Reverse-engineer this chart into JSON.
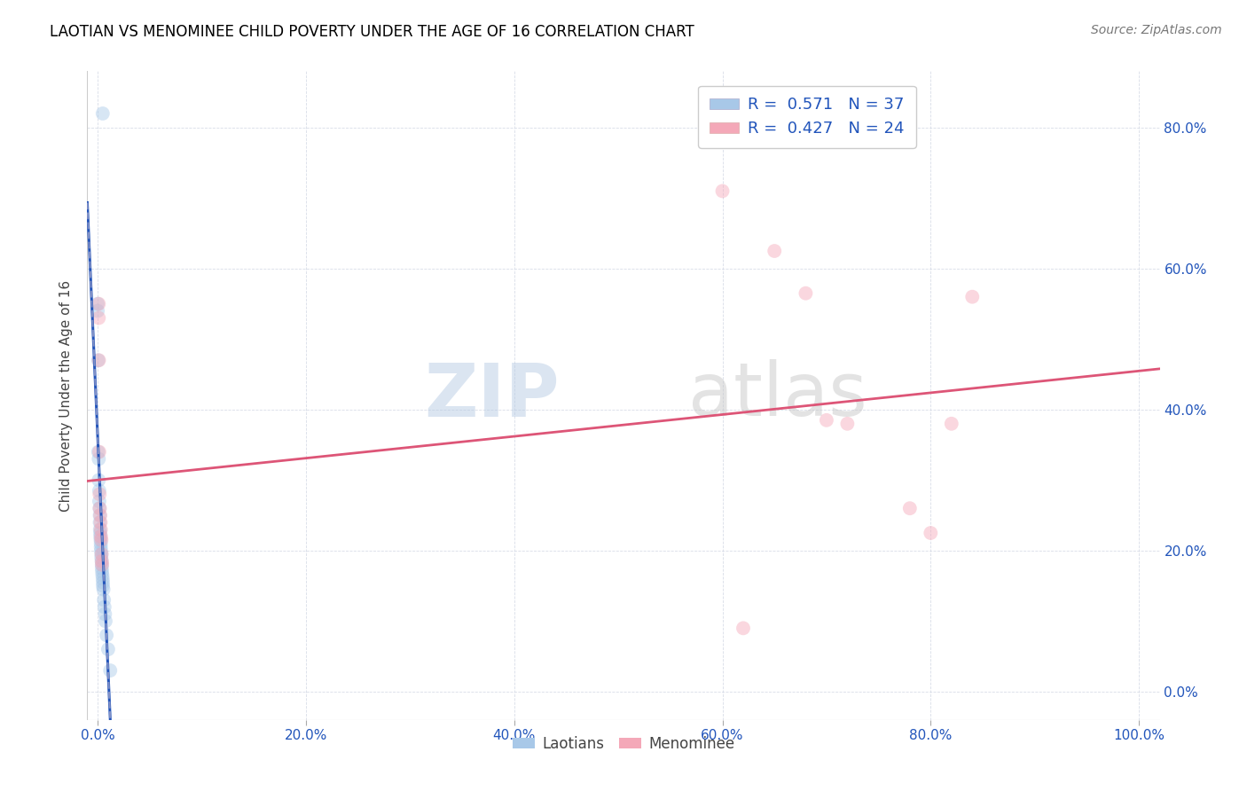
{
  "title": "LAOTIAN VS MENOMINEE CHILD POVERTY UNDER THE AGE OF 16 CORRELATION CHART",
  "source": "Source: ZipAtlas.com",
  "ylabel": "Child Poverty Under the Age of 16",
  "laotian_R": 0.571,
  "laotian_N": 37,
  "menominee_R": 0.427,
  "menominee_N": 24,
  "laotian_color": "#a8c8e8",
  "menominee_color": "#f4a8b8",
  "laotian_line_color": "#2255bb",
  "menominee_line_color": "#dd5577",
  "laotian_scatter": [
    [
      0.0,
      0.55
    ],
    [
      0.0,
      0.54
    ],
    [
      0.0005,
      0.47
    ],
    [
      0.0005,
      0.34
    ],
    [
      0.001,
      0.33
    ],
    [
      0.001,
      0.3
    ],
    [
      0.0015,
      0.285
    ],
    [
      0.0015,
      0.27
    ],
    [
      0.0018,
      0.26
    ],
    [
      0.002,
      0.25
    ],
    [
      0.002,
      0.24
    ],
    [
      0.0022,
      0.23
    ],
    [
      0.0025,
      0.225
    ],
    [
      0.0025,
      0.22
    ],
    [
      0.0028,
      0.215
    ],
    [
      0.003,
      0.21
    ],
    [
      0.003,
      0.205
    ],
    [
      0.0032,
      0.2
    ],
    [
      0.0035,
      0.195
    ],
    [
      0.0035,
      0.19
    ],
    [
      0.0038,
      0.185
    ],
    [
      0.004,
      0.18
    ],
    [
      0.004,
      0.175
    ],
    [
      0.0042,
      0.17
    ],
    [
      0.0045,
      0.165
    ],
    [
      0.0048,
      0.16
    ],
    [
      0.005,
      0.155
    ],
    [
      0.005,
      0.15
    ],
    [
      0.0055,
      0.145
    ],
    [
      0.006,
      0.13
    ],
    [
      0.0065,
      0.12
    ],
    [
      0.007,
      0.11
    ],
    [
      0.0075,
      0.1
    ],
    [
      0.0085,
      0.08
    ],
    [
      0.01,
      0.06
    ],
    [
      0.012,
      0.03
    ],
    [
      0.0048,
      0.82
    ]
  ],
  "menominee_scatter": [
    [
      0.001,
      0.55
    ],
    [
      0.001,
      0.53
    ],
    [
      0.0012,
      0.47
    ],
    [
      0.0015,
      0.34
    ],
    [
      0.0018,
      0.28
    ],
    [
      0.002,
      0.26
    ],
    [
      0.0025,
      0.25
    ],
    [
      0.0028,
      0.24
    ],
    [
      0.003,
      0.23
    ],
    [
      0.0032,
      0.22
    ],
    [
      0.0035,
      0.215
    ],
    [
      0.0038,
      0.195
    ],
    [
      0.004,
      0.185
    ],
    [
      0.0042,
      0.18
    ],
    [
      0.6,
      0.71
    ],
    [
      0.65,
      0.625
    ],
    [
      0.68,
      0.565
    ],
    [
      0.7,
      0.385
    ],
    [
      0.72,
      0.38
    ],
    [
      0.78,
      0.26
    ],
    [
      0.8,
      0.225
    ],
    [
      0.82,
      0.38
    ],
    [
      0.84,
      0.56
    ],
    [
      0.62,
      0.09
    ]
  ],
  "xlim": [
    -0.01,
    1.02
  ],
  "ylim": [
    -0.04,
    0.88
  ],
  "xticks": [
    0.0,
    0.2,
    0.4,
    0.6,
    0.8,
    1.0
  ],
  "yticks": [
    0.0,
    0.2,
    0.4,
    0.6,
    0.8
  ],
  "xticklabels": [
    "0.0%",
    "20.0%",
    "40.0%",
    "60.0%",
    "80.0%",
    "100.0%"
  ],
  "yticklabels_left": [
    "",
    "",
    "",
    "",
    ""
  ],
  "yticklabels_right": [
    "0.0%",
    "20.0%",
    "40.0%",
    "60.0%",
    "80.0%"
  ],
  "watermark_zip": "ZIP",
  "watermark_atlas": "atlas",
  "marker_size": 130,
  "marker_alpha": 0.45,
  "legend_labels": [
    "Laotians",
    "Menominee"
  ],
  "background_color": "#ffffff",
  "grid_color": "#d8dde8",
  "title_fontsize": 12,
  "tick_fontsize": 11
}
